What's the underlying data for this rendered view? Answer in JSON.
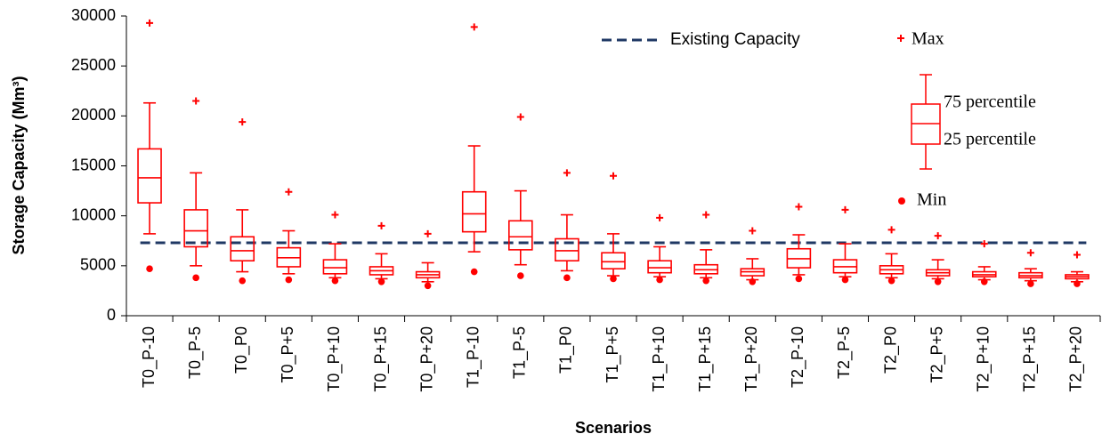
{
  "chart_data": {
    "type": "box",
    "y_label": "Storage Capacity (Mm³)",
    "x_label": "Scenarios",
    "color": "#ff0000",
    "categories": [
      "T0_P-10",
      "T0_P-5",
      "T0_P0",
      "T0_P+5",
      "T0_P+10",
      "T0_P+15",
      "T0_P+20",
      "T1_P-10",
      "T1_P-5",
      "T1_P0",
      "T1_P+5",
      "T1_P+10",
      "T1_P+15",
      "T1_P+20",
      "T2_P-10",
      "T2_P-5",
      "T2_P0",
      "T2_P+5",
      "T2_P+10",
      "T2_P+15",
      "T2_P+20"
    ],
    "max": [
      29300,
      21500,
      19400,
      12400,
      10100,
      9000,
      8200,
      28900,
      19900,
      14300,
      14000,
      9800,
      10100,
      8500,
      10900,
      10600,
      8600,
      8000,
      7200,
      6300,
      6100
    ],
    "whisker_high": [
      21300,
      14300,
      10600,
      8500,
      7200,
      6200,
      5300,
      17000,
      12500,
      10100,
      8200,
      6900,
      6600,
      5700,
      8100,
      7200,
      6200,
      5600,
      4900,
      4700,
      4400
    ],
    "q3": [
      16700,
      10600,
      7900,
      6800,
      5600,
      4900,
      4400,
      12400,
      9500,
      7700,
      6300,
      5500,
      5100,
      4700,
      6700,
      5600,
      5000,
      4600,
      4400,
      4300,
      4100
    ],
    "median": [
      13800,
      8500,
      6500,
      5800,
      4800,
      4500,
      4100,
      10200,
      7900,
      6500,
      5400,
      4800,
      4600,
      4400,
      5700,
      4900,
      4600,
      4300,
      4100,
      4000,
      3900
    ],
    "q1": [
      11300,
      6900,
      5500,
      4900,
      4200,
      4100,
      3800,
      8400,
      6600,
      5500,
      4700,
      4300,
      4200,
      4000,
      4800,
      4300,
      4200,
      4000,
      3900,
      3800,
      3700
    ],
    "whisker_low": [
      8200,
      5000,
      4400,
      4200,
      3800,
      3700,
      3400,
      6400,
      5100,
      4500,
      4000,
      3900,
      3800,
      3600,
      4100,
      3900,
      3800,
      3700,
      3600,
      3500,
      3400
    ],
    "min": [
      4700,
      3800,
      3500,
      3600,
      3500,
      3400,
      3000,
      4400,
      4000,
      3800,
      3700,
      3600,
      3500,
      3400,
      3700,
      3600,
      3500,
      3400,
      3400,
      3200,
      3200
    ],
    "reference_line": {
      "label": "Existing Capacity",
      "value": 7300,
      "color": "#1f3864"
    },
    "legend": {
      "max": "Max",
      "q3": "75 percentile",
      "q1": "25 percentile",
      "min": "Min"
    },
    "ylim": [
      0,
      30000
    ],
    "yticks": [
      0,
      5000,
      10000,
      15000,
      20000,
      25000,
      30000
    ],
    "grid": false
  }
}
